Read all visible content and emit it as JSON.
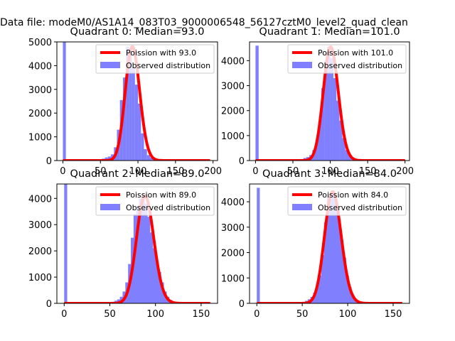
{
  "suptitle": "Data file: modeM0/AS1A14_083T03_9000006548_56127cztM0_level2_quad_clean",
  "colors": {
    "hist": "#8080ff",
    "fit": "#ff0000"
  },
  "chart_data": [
    {
      "type": "bar",
      "title": "Quadrant 0: Median=93.0",
      "xlim": [
        -8,
        206
      ],
      "ylim": [
        0,
        5000
      ],
      "xticks": [
        0,
        50,
        100,
        150,
        200
      ],
      "yticks": [
        0,
        1000,
        2000,
        3000,
        4000,
        5000
      ],
      "bin_width": 4.0,
      "hist_x": [
        0,
        52,
        56,
        60,
        64,
        68,
        72,
        76,
        80,
        84,
        88,
        92,
        96,
        100,
        104,
        108,
        112,
        116,
        120,
        124,
        128
      ],
      "hist_y": [
        5000,
        80,
        130,
        170,
        260,
        560,
        1300,
        2550,
        3500,
        4800,
        4450,
        3900,
        3200,
        2400,
        1150,
        480,
        230,
        130,
        90,
        40,
        20
      ],
      "fit_mean": 93.0,
      "fit_range": [
        0,
        196
      ],
      "legend": [
        "Poission with 93.0",
        "Observed distribution"
      ]
    },
    {
      "type": "bar",
      "title": "Quadrant 1: Median=101.0",
      "xlim": [
        -8,
        206
      ],
      "ylim": [
        0,
        4750
      ],
      "xticks": [
        0,
        50,
        100,
        150,
        200
      ],
      "yticks": [
        0,
        1000,
        2000,
        3000,
        4000
      ],
      "bin_width": 4.2,
      "hist_x": [
        0,
        60,
        64,
        68,
        72,
        76,
        80,
        84,
        88,
        92,
        96,
        100,
        104,
        108,
        112,
        116,
        120,
        124,
        128,
        132,
        136
      ],
      "hist_y": [
        4600,
        60,
        100,
        140,
        220,
        420,
        800,
        1550,
        2900,
        4000,
        4550,
        4100,
        3300,
        2400,
        1600,
        900,
        420,
        200,
        120,
        60,
        30
      ],
      "fit_mean": 101.0,
      "fit_range": [
        0,
        200
      ],
      "legend": [
        "Poission with 101.0",
        "Observed distribution"
      ]
    },
    {
      "type": "bar",
      "title": "Quadrant 2: Median=89.0",
      "xlim": [
        -8,
        168
      ],
      "ylim": [
        0,
        4550
      ],
      "xticks": [
        0,
        50,
        100,
        150
      ],
      "yticks": [
        0,
        1000,
        2000,
        3000,
        4000
      ],
      "bin_width": 3.3,
      "hist_x": [
        0,
        52,
        55,
        58,
        61,
        64,
        67,
        70,
        73,
        76,
        79,
        82,
        85,
        88,
        91,
        94,
        97,
        100,
        103,
        106,
        109,
        112,
        115,
        118,
        121
      ],
      "hist_y": [
        4550,
        60,
        100,
        150,
        250,
        450,
        800,
        1500,
        2500,
        3400,
        3700,
        4000,
        4100,
        3800,
        3300,
        2700,
        2100,
        1600,
        1200,
        800,
        450,
        250,
        130,
        70,
        30
      ],
      "fit_mean": 89.0,
      "fit_range": [
        0,
        160
      ],
      "legend": [
        "Poission with 89.0",
        "Observed distribution"
      ]
    },
    {
      "type": "bar",
      "title": "Quadrant 3: Median=84.0",
      "xlim": [
        -8,
        168
      ],
      "ylim": [
        0,
        4700
      ],
      "xticks": [
        0,
        50,
        100,
        150
      ],
      "yticks": [
        0,
        1000,
        2000,
        3000,
        4000
      ],
      "bin_width": 3.3,
      "hist_x": [
        0,
        50,
        53,
        56,
        59,
        62,
        65,
        68,
        71,
        74,
        77,
        80,
        83,
        86,
        89,
        92,
        95,
        98,
        101,
        104,
        107,
        110,
        113,
        116
      ],
      "hist_y": [
        4550,
        60,
        100,
        160,
        250,
        420,
        700,
        1100,
        1900,
        3200,
        4200,
        4300,
        4400,
        3900,
        3300,
        2500,
        1800,
        1100,
        650,
        350,
        180,
        100,
        50,
        20
      ],
      "fit_mean": 84.0,
      "fit_range": [
        0,
        160
      ],
      "legend": [
        "Poission with 84.0",
        "Observed distribution"
      ]
    }
  ]
}
